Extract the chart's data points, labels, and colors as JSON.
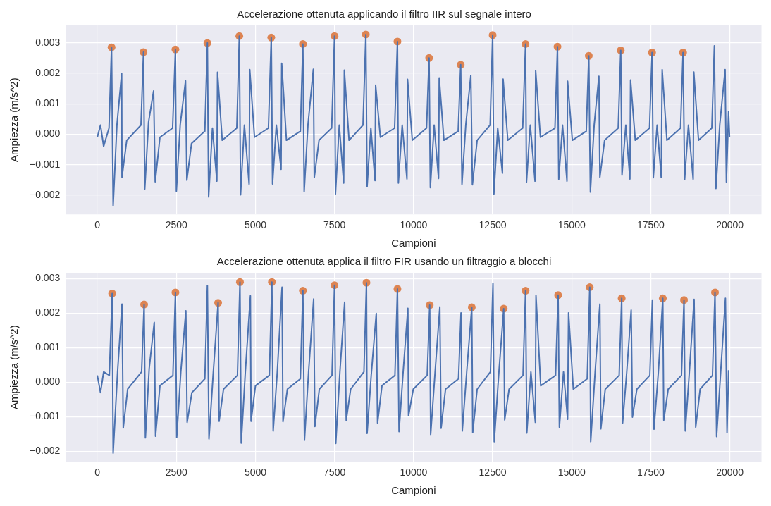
{
  "chart_data": [
    {
      "type": "line",
      "title": "Accelerazione ottenuta applicando il filtro IIR sul segnale intero",
      "xlabel": "Campioni",
      "ylabel": "Ampiezza (m/s^2)",
      "xlim": [
        -1000,
        21000
      ],
      "ylim": [
        -0.00263,
        0.00357
      ],
      "xticks": [
        0,
        2500,
        5000,
        7500,
        10000,
        12500,
        15000,
        17500,
        20000
      ],
      "yticks": [
        {
          "value": -0.002,
          "label": "−0.002"
        },
        {
          "value": -0.001,
          "label": "−0.001"
        },
        {
          "value": 0,
          "label": "0.000"
        },
        0.001,
        0.002,
        0.003
      ],
      "grid": true,
      "series": [
        {
          "color": "#4c72b0",
          "marker": "none",
          "x": [
            0,
            100,
            200,
            370,
            450,
            500,
            620,
            770,
            780,
            930,
            1380,
            1460,
            1500,
            1620,
            1780,
            1830,
            1980,
            2380,
            2470,
            2500,
            2620,
            2790,
            2830,
            2980,
            3400,
            3480,
            3520,
            3640,
            3780,
            3800,
            3950,
            4410,
            4490,
            4530,
            4650,
            4800,
            4820,
            4970,
            5410,
            5500,
            5540,
            5660,
            5810,
            5830,
            5980,
            6420,
            6500,
            6540,
            6660,
            6830,
            6860,
            7010,
            7410,
            7500,
            7530,
            7650,
            7790,
            7810,
            7960,
            8400,
            8490,
            8530,
            8650,
            8780,
            8800,
            8950,
            9400,
            9490,
            9520,
            9640,
            9790,
            9810,
            9960,
            10410,
            10490,
            10530,
            10650,
            10790,
            10810,
            10960,
            11410,
            11490,
            11530,
            11650,
            11810,
            11860,
            12010,
            12420,
            12500,
            12540,
            12660,
            12810,
            12830,
            12980,
            13450,
            13540,
            13570,
            13690,
            13840,
            13860,
            14010,
            14470,
            14550,
            14590,
            14710,
            14850,
            14870,
            15020,
            15460,
            15540,
            15590,
            15710,
            15860,
            15890,
            16040,
            16470,
            16550,
            16590,
            16710,
            16840,
            16860,
            17010,
            17460,
            17540,
            17580,
            17700,
            17830,
            17860,
            18010,
            18440,
            18520,
            18570,
            18690,
            18840,
            18860,
            19010,
            19430,
            19510,
            19560,
            19680,
            19850,
            19890,
            19960,
            19990
          ],
          "values": [
            -0.0001,
            0.0003,
            -0.0004,
            0.0002,
            0.00285,
            -0.00234,
            0.0003,
            0.00199,
            -0.00141,
            -0.0002,
            0.0003,
            0.00269,
            -0.0018,
            0.0004,
            0.00142,
            -0.00156,
            -0.0001,
            0.0002,
            0.00278,
            -0.00187,
            0.0003,
            0.00175,
            -0.00151,
            -0.0003,
            0.0001,
            0.00299,
            -0.00206,
            0.0002,
            -0.00154,
            0.00203,
            -0.0002,
            0.0002,
            0.00322,
            -0.00199,
            0.0003,
            -0.00164,
            0.00212,
            -0.0001,
            0.0002,
            0.00317,
            -0.00163,
            0.0003,
            -0.00115,
            0.00233,
            -0.0002,
            0.0001,
            0.00296,
            -0.00188,
            0.0003,
            0.00213,
            -0.00142,
            -0.0002,
            0.0002,
            0.00322,
            -0.00196,
            0.0003,
            -0.0016,
            0.0021,
            -0.0002,
            0.0003,
            0.00327,
            -0.00172,
            0.0002,
            -0.00152,
            0.00161,
            -0.0001,
            0.0002,
            0.00304,
            -0.0016,
            0.0003,
            -0.00147,
            0.0018,
            -0.0002,
            0.0002,
            0.0025,
            -0.00175,
            0.0003,
            -0.00145,
            0.00185,
            -0.0002,
            0.0001,
            0.00228,
            -0.00164,
            0.0003,
            0.00193,
            -0.00166,
            -0.0002,
            0.0003,
            0.00325,
            -0.00196,
            0.0002,
            -0.00128,
            0.00181,
            -0.0002,
            0.0002,
            0.00296,
            -0.00158,
            0.0003,
            -0.00154,
            0.00209,
            -0.0001,
            0.0002,
            0.00287,
            -0.00148,
            0.0003,
            -0.00154,
            0.00174,
            -0.0002,
            0.0001,
            0.00257,
            -0.0019,
            0.0003,
            0.0019,
            -0.00141,
            -0.0002,
            0.0002,
            0.00275,
            -0.00134,
            0.0003,
            -0.00147,
            0.00178,
            -0.0002,
            0.0002,
            0.00268,
            -0.00143,
            0.0003,
            -0.00142,
            0.00212,
            -0.0002,
            0.0002,
            0.00268,
            -0.00149,
            0.0003,
            -0.00148,
            0.00204,
            -0.0002,
            0.0002,
            0.0029,
            -0.00178,
            0.0003,
            0.00212,
            -0.00157,
            0.00075,
            -0.0001
          ]
        },
        {
          "type": "scatter",
          "color": "#dd8452",
          "marker": "circle",
          "x": [
            450,
            1460,
            2470,
            3480,
            4490,
            5500,
            6500,
            7500,
            8490,
            9490,
            10490,
            11490,
            12500,
            13540,
            14550,
            15540,
            16550,
            17540,
            18520
          ],
          "values": [
            0.00285,
            0.00269,
            0.00278,
            0.00299,
            0.00322,
            0.00317,
            0.00296,
            0.00322,
            0.00327,
            0.00304,
            0.0025,
            0.00228,
            0.00325,
            0.00296,
            0.00287,
            0.00257,
            0.00275,
            0.00268,
            0.00268
          ]
        }
      ]
    },
    {
      "type": "line",
      "title": "Accelerazione ottenuta applica il filtro FIR usando un filtraggio a blocchi",
      "xlabel": "Campioni",
      "ylabel": "Ampiezza (m/s^2)",
      "xlim": [
        -1000,
        21000
      ],
      "ylim": [
        -0.0023,
        0.00317
      ],
      "xticks": [
        0,
        2500,
        5000,
        7500,
        10000,
        12500,
        15000,
        17500,
        20000
      ],
      "yticks": [
        {
          "value": -0.002,
          "label": "−0.002"
        },
        {
          "value": -0.001,
          "label": "−0.001"
        },
        {
          "value": 0,
          "label": "0.000"
        },
        0.001,
        0.002,
        0.003
      ],
      "grid": true,
      "series": [
        {
          "color": "#4c72b0",
          "marker": "none",
          "x": [
            0,
            100,
            200,
            380,
            470,
            500,
            640,
            780,
            820,
            960,
            1400,
            1480,
            1520,
            1640,
            1800,
            1840,
            1980,
            2390,
            2470,
            2510,
            2640,
            2800,
            2840,
            2990,
            3400,
            3480,
            3530,
            3660,
            3820,
            3850,
            3990,
            4430,
            4510,
            4550,
            4680,
            4840,
            4860,
            5000,
            5440,
            5520,
            5560,
            5690,
            5840,
            5870,
            6010,
            6420,
            6500,
            6550,
            6680,
            6840,
            6880,
            7020,
            7420,
            7500,
            7540,
            7670,
            7820,
            7870,
            8010,
            8430,
            8510,
            8530,
            8660,
            8820,
            8860,
            9000,
            9410,
            9490,
            9540,
            9670,
            9820,
            9840,
            9990,
            10430,
            10510,
            10540,
            10680,
            10830,
            10870,
            11010,
            11420,
            11500,
            11540,
            11680,
            11840,
            11870,
            12010,
            12430,
            12510,
            12550,
            12690,
            12850,
            12880,
            13020,
            13460,
            13540,
            13580,
            13710,
            13850,
            13870,
            14020,
            14490,
            14570,
            14610,
            14740,
            14870,
            14900,
            15050,
            15490,
            15570,
            15600,
            15740,
            15890,
            15920,
            16060,
            16500,
            16580,
            16610,
            16740,
            16880,
            16920,
            17060,
            17470,
            17550,
            17600,
            17740,
            17880,
            17910,
            18050,
            18470,
            18550,
            18590,
            18720,
            18870,
            18920,
            19060,
            19450,
            19530,
            19580,
            19710,
            19860,
            19910,
            19960
          ],
          "values": [
            0.0002,
            -0.0003,
            0.0003,
            0.0002,
            0.00257,
            -0.00205,
            0.0003,
            0.00226,
            -0.00132,
            -0.0002,
            0.0003,
            0.00225,
            -0.00161,
            0.0004,
            0.00173,
            -0.00156,
            -0.0001,
            0.0002,
            0.0026,
            -0.0016,
            0.0003,
            0.00207,
            -0.00116,
            -0.0003,
            0.0001,
            0.0028,
            -0.00164,
            0.0002,
            0.0023,
            -0.00113,
            -0.0002,
            0.0002,
            0.0029,
            -0.00176,
            0.0003,
            0.0025,
            -0.00113,
            -0.0001,
            0.0002,
            0.0029,
            -0.00141,
            0.0003,
            0.00275,
            -0.00114,
            -0.0002,
            0.0001,
            0.00265,
            -0.00168,
            0.0003,
            0.00241,
            -0.00128,
            -0.0002,
            0.0002,
            0.00281,
            -0.00177,
            0.0003,
            0.00232,
            -0.0011,
            -0.0002,
            0.0003,
            0.00288,
            -0.00148,
            0.0002,
            0.00199,
            -0.00118,
            -0.0001,
            0.0002,
            0.0027,
            -0.00143,
            0.0003,
            0.00214,
            -0.00097,
            -0.0002,
            0.0002,
            0.00223,
            -0.00151,
            0.0003,
            0.00218,
            -0.00133,
            -0.0002,
            0.0001,
            0.00201,
            -0.00141,
            0.0003,
            0.00217,
            -0.00146,
            -0.0002,
            0.0003,
            0.00286,
            -0.00172,
            0.0002,
            0.00213,
            -0.00109,
            -0.0002,
            0.0002,
            0.00265,
            -0.00147,
            0.0003,
            -0.00116,
            0.00251,
            -0.0001,
            0.0002,
            0.00252,
            -0.0013,
            0.0003,
            -0.00107,
            0.00201,
            -0.0002,
            0.0001,
            0.00275,
            -0.00172,
            0.0003,
            0.00226,
            -0.00135,
            -0.0002,
            0.0002,
            0.00243,
            -0.00118,
            0.0003,
            0.00209,
            -0.00101,
            -0.0002,
            0.0002,
            0.00238,
            -0.00136,
            0.0003,
            0.00243,
            -0.0011,
            -0.0002,
            0.0002,
            0.00238,
            -0.00141,
            0.0003,
            0.0024,
            -0.0013,
            -0.0002,
            0.0002,
            0.0026,
            -0.00157,
            0.0003,
            0.00243,
            -0.00146,
            0.00035
          ]
        },
        {
          "type": "scatter",
          "color": "#dd8452",
          "marker": "circle",
          "x": [
            470,
            1480,
            2470,
            3820,
            4510,
            5520,
            6500,
            7500,
            8510,
            9490,
            10510,
            11840,
            12850,
            13540,
            14570,
            15570,
            16580,
            17880,
            18550,
            19530
          ],
          "values": [
            0.00257,
            0.00225,
            0.0026,
            0.0023,
            0.0029,
            0.0029,
            0.00265,
            0.00281,
            0.00288,
            0.0027,
            0.00223,
            0.00217,
            0.00213,
            0.00265,
            0.00252,
            0.00275,
            0.00243,
            0.00243,
            0.00238,
            0.0026
          ]
        }
      ]
    }
  ]
}
